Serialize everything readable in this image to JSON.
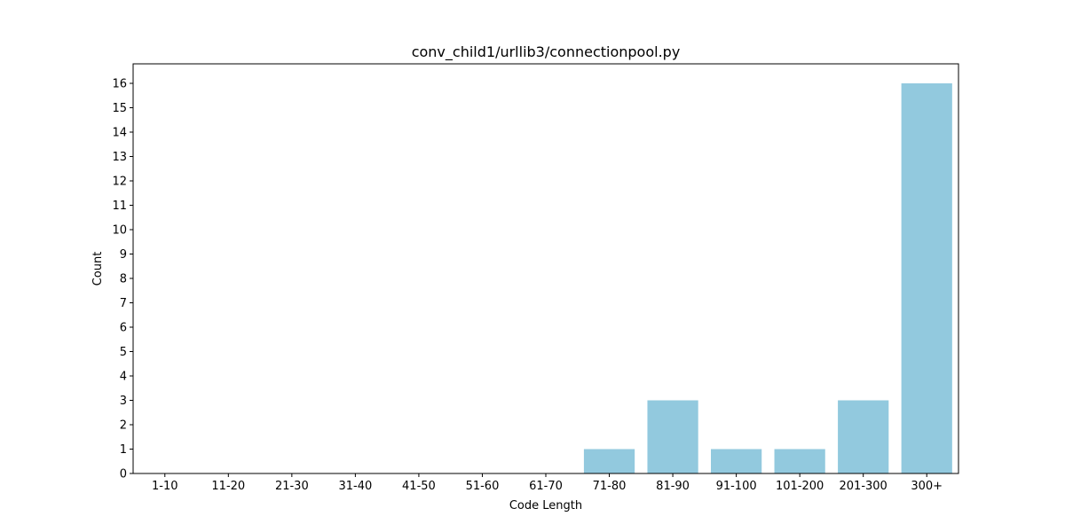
{
  "chart_data": {
    "type": "bar",
    "title": "conv_child1/urllib3/connectionpool.py",
    "xlabel": "Code Length",
    "ylabel": "Count",
    "categories": [
      "1-10",
      "11-20",
      "21-30",
      "31-40",
      "41-50",
      "51-60",
      "61-70",
      "71-80",
      "81-90",
      "91-100",
      "101-200",
      "201-300",
      "300+"
    ],
    "values": [
      0,
      0,
      0,
      0,
      0,
      0,
      0,
      1,
      3,
      1,
      1,
      3,
      16
    ],
    "ylim": [
      0,
      16.8
    ],
    "yticks": [
      0,
      1,
      2,
      3,
      4,
      5,
      6,
      7,
      8,
      9,
      10,
      11,
      12,
      13,
      14,
      15,
      16
    ],
    "bar_color": "#92c9de",
    "grid": false,
    "legend": "none"
  }
}
